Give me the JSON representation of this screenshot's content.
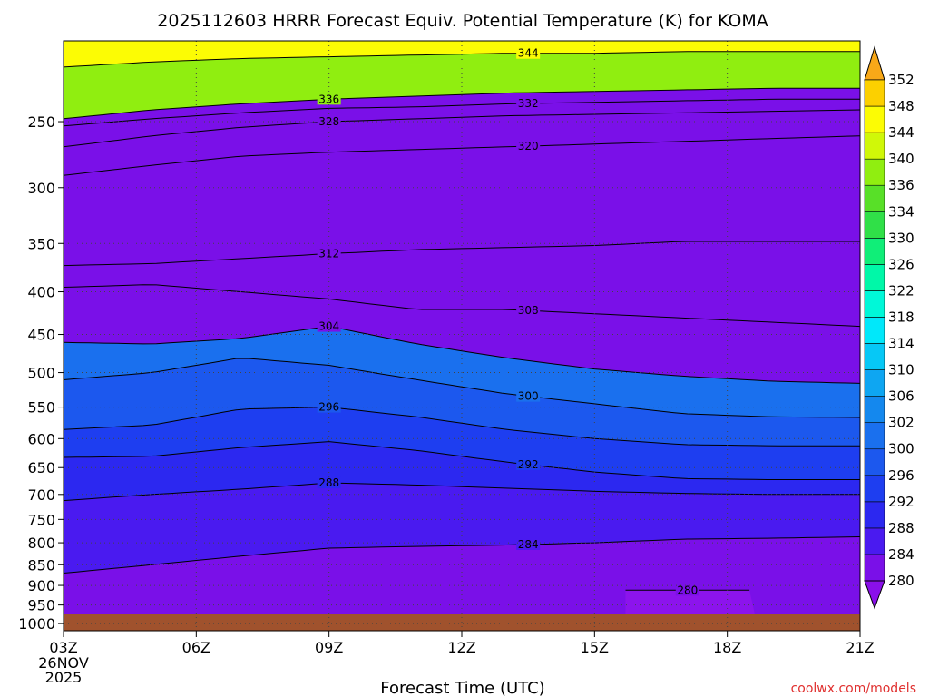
{
  "chart_data": {
    "type": "heatmap",
    "title": "2025112603 HRRR Forecast Equiv. Potential Temperature (K) for KOMA",
    "xlabel": "Forecast Time (UTC)",
    "ylabel": "",
    "credit": "coolwx.com/models",
    "x_ticks": [
      "03Z",
      "06Z",
      "09Z",
      "12Z",
      "15Z",
      "18Z",
      "21Z"
    ],
    "x_date_line1": "26NOV",
    "x_date_line2": "2025",
    "x_hours": [
      3,
      6,
      9,
      12,
      15,
      18,
      21
    ],
    "xlim": [
      3,
      21
    ],
    "y_ticks": [
      250,
      300,
      350,
      400,
      450,
      500,
      550,
      600,
      650,
      700,
      750,
      800,
      850,
      900,
      950,
      1000
    ],
    "ylim": [
      1020,
      200
    ],
    "yscale": "log",
    "ground_pressure": 975,
    "grid": true,
    "colorbar": {
      "levels": [
        280,
        284,
        288,
        292,
        296,
        300,
        302,
        306,
        310,
        314,
        318,
        322,
        326,
        330,
        334,
        336,
        340,
        344,
        348,
        352
      ],
      "colors": [
        "#7a10e8",
        "#4a1af0",
        "#2c28f0",
        "#1e3ef0",
        "#1c58ee",
        "#1a70ee",
        "#1488ee",
        "#0ea6f2",
        "#06c8f6",
        "#00e8fa",
        "#00f8d8",
        "#00f8a8",
        "#10ee78",
        "#30e048",
        "#58e028",
        "#90ee10",
        "#d0f808",
        "#fcfc04",
        "#fcd000",
        "#f8a818"
      ],
      "extend": "both"
    },
    "isopleths": [
      {
        "label": "280",
        "x": [
          15.7,
          18.5
        ],
        "p": [
          912,
          912
        ]
      },
      {
        "label": "284",
        "x": [
          3,
          5,
          7,
          9,
          11,
          13,
          15,
          17,
          19,
          21
        ],
        "p": [
          870,
          850,
          830,
          812,
          808,
          805,
          800,
          792,
          790,
          787
        ]
      },
      {
        "label": "288",
        "x": [
          3,
          5,
          7,
          9,
          11,
          13,
          15,
          17,
          19,
          21
        ],
        "p": [
          712,
          700,
          690,
          678,
          682,
          688,
          694,
          698,
          700,
          700
        ]
      },
      {
        "label": "292",
        "x": [
          3,
          5,
          7,
          9,
          11,
          13,
          15,
          17,
          19,
          21
        ],
        "p": [
          632,
          630,
          615,
          605,
          620,
          640,
          658,
          670,
          672,
          672
        ]
      },
      {
        "label": "296",
        "x": [
          3,
          5,
          7,
          9,
          11,
          13,
          15,
          17,
          19,
          21
        ],
        "p": [
          585,
          578,
          553,
          550,
          565,
          585,
          600,
          610,
          612,
          612
        ]
      },
      {
        "label": "300",
        "x": [
          3,
          5,
          7,
          9,
          11,
          13,
          15,
          17,
          19,
          21
        ],
        "p": [
          510,
          500,
          480,
          490,
          510,
          530,
          545,
          560,
          565,
          566
        ]
      },
      {
        "label": "304",
        "x": [
          3,
          5,
          7,
          9,
          11,
          13,
          15,
          17,
          19,
          21
        ],
        "p": [
          460,
          462,
          455,
          440,
          462,
          480,
          495,
          505,
          512,
          515
        ]
      },
      {
        "label": "308",
        "x": [
          3,
          5,
          7,
          9,
          11,
          13,
          15,
          17,
          19,
          21
        ],
        "p": [
          395,
          392,
          400,
          408,
          420,
          420,
          425,
          430,
          435,
          440
        ]
      },
      {
        "label": "312",
        "x": [
          3,
          5,
          7,
          9,
          11,
          13,
          15,
          17,
          19,
          21
        ],
        "p": [
          372,
          370,
          365,
          360,
          356,
          354,
          352,
          348,
          348,
          348
        ]
      },
      {
        "label": "320",
        "x": [
          3,
          5,
          7,
          9,
          11,
          13,
          15,
          17,
          19,
          21
        ],
        "p": [
          290,
          282,
          275,
          272,
          270,
          268,
          266,
          264,
          262,
          260
        ]
      },
      {
        "label": "328",
        "x": [
          3,
          5,
          7,
          9,
          11,
          13,
          15,
          17,
          19,
          21
        ],
        "p": [
          268,
          260,
          254,
          250,
          248,
          246,
          245,
          244,
          243,
          242
        ]
      },
      {
        "label": "332",
        "x": [
          3,
          5,
          7,
          9,
          11,
          13,
          15,
          17,
          19,
          21
        ],
        "p": [
          253,
          248,
          244,
          241,
          240,
          238,
          237,
          236,
          235,
          235
        ]
      },
      {
        "label": "336",
        "x": [
          3,
          5,
          7,
          9,
          11,
          13,
          15,
          17,
          19,
          21
        ],
        "p": [
          248,
          242,
          238,
          235,
          233,
          231,
          230,
          229,
          228,
          228
        ]
      },
      {
        "label": "344",
        "x": [
          3,
          5,
          7,
          9,
          11,
          13,
          15,
          17,
          19,
          21
        ],
        "p": [
          215,
          212,
          210,
          209,
          208,
          207,
          207,
          206,
          206,
          206
        ]
      }
    ]
  }
}
